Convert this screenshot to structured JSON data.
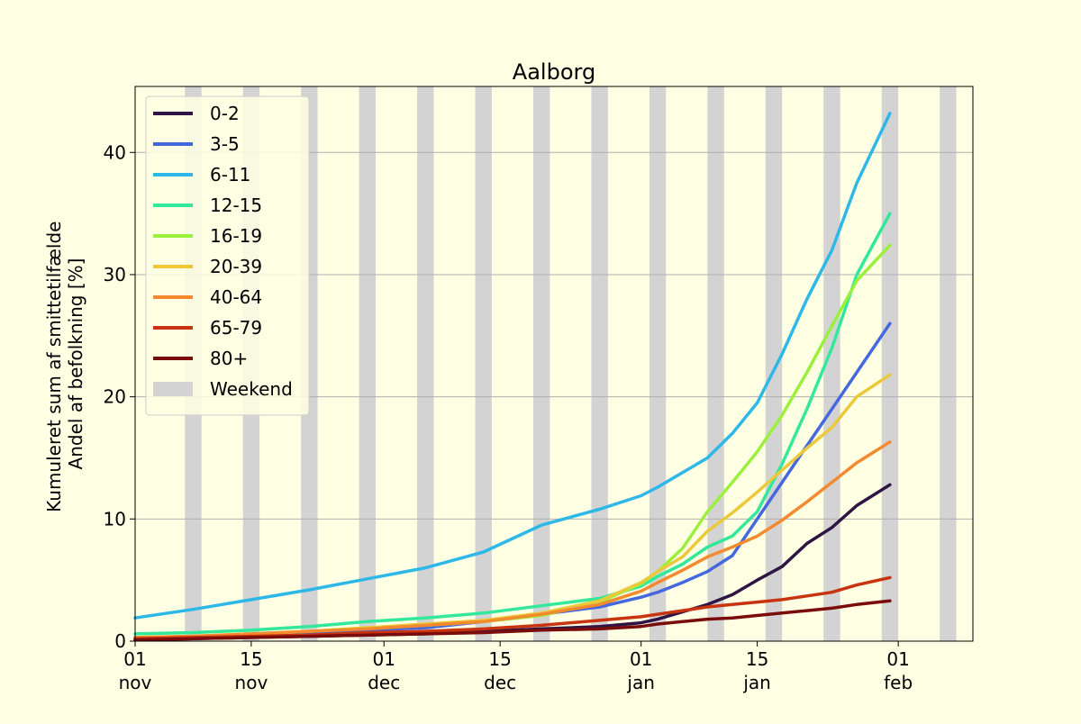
{
  "chart_data": {
    "type": "line",
    "title": "Aalborg",
    "ylabel_line1": "Kumuleret sum af smittetilfælde",
    "ylabel_line2": "Andel af befolkning [%]",
    "ylim": [
      0,
      45.4
    ],
    "yticks": [
      0,
      10,
      20,
      30,
      40
    ],
    "xlim": [
      "2020-11-01",
      "2021-02-10"
    ],
    "xticks": [
      {
        "date": "2020-11-01",
        "day": "01",
        "month": "nov"
      },
      {
        "date": "2020-11-15",
        "day": "15",
        "month": "nov"
      },
      {
        "date": "2020-12-01",
        "day": "01",
        "month": "dec"
      },
      {
        "date": "2020-12-15",
        "day": "15",
        "month": "dec"
      },
      {
        "date": "2021-01-01",
        "day": "01",
        "month": "jan"
      },
      {
        "date": "2021-01-15",
        "day": "15",
        "month": "jan"
      },
      {
        "date": "2021-02-01",
        "day": "01",
        "month": "feb"
      }
    ],
    "grid": "y",
    "legend_position": "upper-left",
    "weekend_label": "Weekend",
    "weekend_color": "#d3d3d3",
    "weekends": [
      [
        "2020-11-07",
        "2020-11-09"
      ],
      [
        "2020-11-14",
        "2020-11-16"
      ],
      [
        "2020-11-21",
        "2020-11-23"
      ],
      [
        "2020-11-28",
        "2020-11-30"
      ],
      [
        "2020-12-05",
        "2020-12-07"
      ],
      [
        "2020-12-12",
        "2020-12-14"
      ],
      [
        "2020-12-19",
        "2020-12-21"
      ],
      [
        "2020-12-26",
        "2020-12-28"
      ],
      [
        "2021-01-02",
        "2021-01-04"
      ],
      [
        "2021-01-09",
        "2021-01-11"
      ],
      [
        "2021-01-16",
        "2021-01-18"
      ],
      [
        "2021-01-23",
        "2021-01-25"
      ],
      [
        "2021-01-30",
        "2021-02-01"
      ],
      [
        "2021-02-06",
        "2021-02-08"
      ]
    ],
    "x": [
      "2020-11-01",
      "2020-11-08",
      "2020-11-15",
      "2020-11-22",
      "2020-11-29",
      "2020-12-06",
      "2020-12-13",
      "2020-12-20",
      "2020-12-27",
      "2021-01-01",
      "2021-01-03",
      "2021-01-06",
      "2021-01-09",
      "2021-01-12",
      "2021-01-15",
      "2021-01-18",
      "2021-01-21",
      "2021-01-24",
      "2021-01-27",
      "2021-01-31"
    ],
    "series": [
      {
        "name": "0-2",
        "color": "#2f1543",
        "values": [
          0.1,
          0.2,
          0.3,
          0.4,
          0.5,
          0.6,
          0.8,
          1.0,
          1.2,
          1.5,
          1.8,
          2.4,
          3.0,
          3.8,
          5.0,
          6.1,
          8.0,
          9.3,
          11.1,
          12.8
        ]
      },
      {
        "name": "3-5",
        "color": "#4568dc",
        "values": [
          0.2,
          0.3,
          0.5,
          0.7,
          0.9,
          1.1,
          1.6,
          2.2,
          2.8,
          3.6,
          4.0,
          4.8,
          5.7,
          7.0,
          10.0,
          13.0,
          16.0,
          19.0,
          22.0,
          26.0
        ]
      },
      {
        "name": "6-11",
        "color": "#2db8e8",
        "values": [
          1.9,
          2.6,
          3.4,
          4.2,
          5.1,
          6.0,
          7.3,
          9.5,
          10.8,
          11.9,
          12.6,
          13.8,
          15.0,
          17.0,
          19.5,
          23.5,
          28.0,
          32.0,
          37.5,
          43.2
        ]
      },
      {
        "name": "12-15",
        "color": "#33e89b",
        "values": [
          0.6,
          0.7,
          0.9,
          1.2,
          1.6,
          1.9,
          2.3,
          2.9,
          3.5,
          4.5,
          5.3,
          6.3,
          7.7,
          8.6,
          10.6,
          14.5,
          19.0,
          24.0,
          30.0,
          35.0
        ]
      },
      {
        "name": "16-19",
        "color": "#9bf03c",
        "values": [
          0.3,
          0.4,
          0.6,
          0.8,
          1.1,
          1.3,
          1.6,
          2.1,
          3.2,
          4.7,
          5.7,
          7.6,
          10.6,
          13.0,
          15.5,
          18.5,
          22.0,
          25.8,
          29.5,
          32.4
        ]
      },
      {
        "name": "20-39",
        "color": "#ecc93b",
        "values": [
          0.3,
          0.4,
          0.6,
          0.8,
          1.1,
          1.4,
          1.7,
          2.3,
          3.3,
          4.8,
          5.7,
          6.9,
          9.0,
          10.5,
          12.2,
          14.0,
          15.8,
          17.5,
          20.0,
          21.8
        ]
      },
      {
        "name": "40-64",
        "color": "#f38a2e",
        "values": [
          0.3,
          0.4,
          0.6,
          0.8,
          1.0,
          1.3,
          1.6,
          2.2,
          3.0,
          4.1,
          4.8,
          5.8,
          6.9,
          7.7,
          8.6,
          9.9,
          11.4,
          13.0,
          14.6,
          16.3
        ]
      },
      {
        "name": "65-79",
        "color": "#c93410",
        "values": [
          0.2,
          0.3,
          0.4,
          0.5,
          0.7,
          0.8,
          1.0,
          1.3,
          1.7,
          2.0,
          2.2,
          2.5,
          2.8,
          3.0,
          3.2,
          3.4,
          3.7,
          4.0,
          4.6,
          5.2
        ]
      },
      {
        "name": "80+",
        "color": "#7a0c0c",
        "values": [
          0.1,
          0.2,
          0.3,
          0.4,
          0.5,
          0.6,
          0.7,
          0.9,
          1.0,
          1.2,
          1.4,
          1.6,
          1.8,
          1.9,
          2.1,
          2.3,
          2.5,
          2.7,
          3.0,
          3.3
        ]
      }
    ]
  }
}
